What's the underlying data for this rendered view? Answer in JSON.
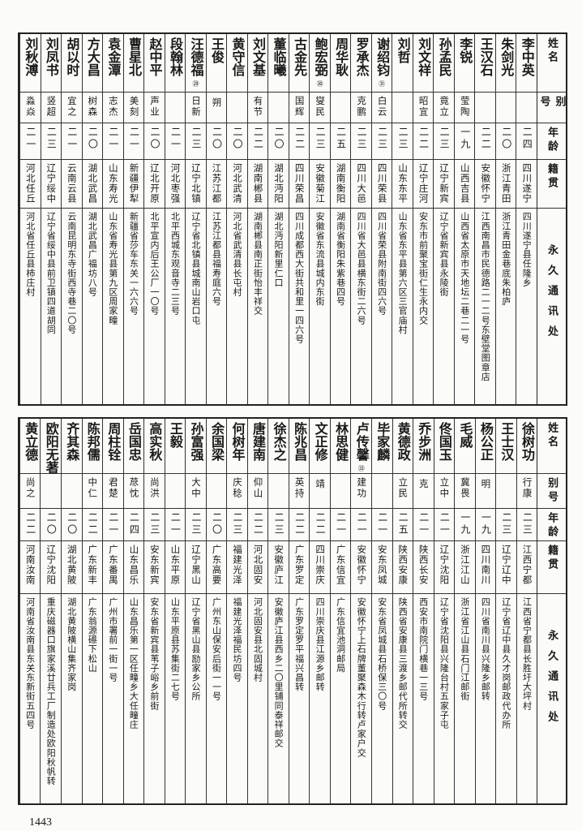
{
  "headers": {
    "name": "姓名",
    "alias": "别号",
    "age": "年龄",
    "hometown": "籍贯",
    "address": "永久通讯处"
  },
  "tables": [
    {
      "rows": [
        {
          "name": "李中英",
          "alias": "",
          "age": "二四",
          "hometown": "四川遂宁",
          "address": "四川遂宁县任隆乡"
        },
        {
          "name": "朱剑光",
          "alias": "",
          "age": "二〇",
          "hometown": "浙江青田",
          "address": "浙江青田金巷底朱柏庐"
        },
        {
          "name": "王汉石",
          "alias": "",
          "age": "二二",
          "hometown": "安徽怀宁",
          "address": "江西南昌市民德路二一二号东壁堂图章店"
        },
        {
          "name": "李锐",
          "alias": "莹陶",
          "age": "一九",
          "hometown": "山西吉县",
          "address": "山西省太原市天地坛二巷二一号"
        },
        {
          "name": "孙孟民",
          "alias": "竟立",
          "age": "二三",
          "hometown": "辽宁新宾",
          "address": "辽宁省新宾县永陵街"
        },
        {
          "name": "刘文祥",
          "alias": "昭宜",
          "age": "二二",
          "hometown": "辽宁庄河",
          "address": "安东市前聚宝街仁生永内交"
        },
        {
          "name": "刘哲",
          "alias": "",
          "age": "二三",
          "hometown": "山东东平",
          "address": "山东省东平县第六区三官庙村"
        },
        {
          "name": "谢绍钧",
          "note": "㉛",
          "alias": "白云",
          "age": "二三",
          "hometown": "四川荣县",
          "address": "四川省荣县附南街四六号"
        },
        {
          "name": "罗承杰",
          "alias": "克鹏",
          "age": "二三",
          "hometown": "四川大邑",
          "address": "四川省大邑县横东街二六号"
        },
        {
          "name": "周华耿",
          "alias": "",
          "age": "二五",
          "hometown": "湖南衡阳",
          "address": "湖南省衡阳朱紫巷四号"
        },
        {
          "name": "鲍宏弼",
          "note": "㉚",
          "alias": "燮民",
          "age": "二三",
          "hometown": "安徽菊江",
          "address": "安徽省东流县城内东街"
        },
        {
          "name": "古金先",
          "alias": "国辉",
          "age": "二二",
          "hometown": "四川荣昌",
          "address": "四川成都西大街共和里一四六号"
        },
        {
          "name": "董临曦",
          "alias": "",
          "age": "二〇",
          "hometown": "湖北沔阳",
          "address": "湖北沔阳新里仁口"
        },
        {
          "name": "刘文基",
          "alias": "有节",
          "age": "二二",
          "hometown": "湖南郴县",
          "address": "湖南郴县南正街怡丰祥交"
        },
        {
          "name": "黄守信",
          "alias": "",
          "age": "二〇",
          "hometown": "河北武清",
          "address": "河北省武清县长屯村"
        },
        {
          "name": "王俊",
          "alias": "朔",
          "age": "二〇",
          "hometown": "江苏江都",
          "address": "江苏江都县福寿庭六号"
        },
        {
          "name": "汪德福",
          "note": "㉙",
          "alias": "日新",
          "age": "二三",
          "hometown": "辽宁北镇",
          "address": "辽宁省北镇县城南山岩口屯"
        },
        {
          "name": "段翰林",
          "alias": "",
          "age": "二一",
          "hometown": "河北枣强",
          "address": "北平西城东观音寺二三号"
        },
        {
          "name": "赵中平",
          "alias": "声业",
          "age": "二〇",
          "hometown": "辽北开原",
          "address": "北平宣内后王公厂一〇号"
        },
        {
          "name": "曹星北",
          "alias": "美刻",
          "age": "二一",
          "hometown": "新疆伊犁",
          "address": "新疆省莎车东关一六六号"
        },
        {
          "name": "袁金潭",
          "alias": "志杰",
          "age": "二一",
          "hometown": "山东寿光",
          "address": "山东省寿光县第九区周家疃"
        },
        {
          "name": "方大昌",
          "alias": "树森",
          "age": "二〇",
          "hometown": "湖北武昌",
          "address": "湖北武昌广福坊八号"
        },
        {
          "name": "胡以时",
          "alias": "宜之",
          "age": "二一",
          "hometown": "云南云县",
          "address": "云南昆明东寺街西寺巷二〇号"
        },
        {
          "name": "刘凤书",
          "alias": "竖超",
          "age": "二三",
          "hometown": "辽宁绥中",
          "address": "辽宁省绥中县前卫镇四道胡同"
        },
        {
          "name": "刘秋溥",
          "alias": "淼焱",
          "age": "二一",
          "hometown": "河北任丘",
          "address": "河北省任丘县柿庄村"
        }
      ]
    },
    {
      "rows": [
        {
          "name": "徐树功",
          "alias": "行康",
          "age": "二三",
          "hometown": "江西宁都",
          "address": "江西省宁都县长胜圩大坪村"
        },
        {
          "name": "王士汉",
          "alias": "",
          "age": "二三",
          "hometown": "辽宁辽中",
          "address": "辽宁省辽中县久才岗邮政代办所"
        },
        {
          "name": "杨公正",
          "alias": "明",
          "age": "一九",
          "hometown": "四川南川",
          "address": "四川省南川县兴隆乡邮转"
        },
        {
          "name": "毛威",
          "alias": "冀畏",
          "age": "一九",
          "hometown": "浙江江山",
          "address": "浙江省江山县石门江邮街"
        },
        {
          "name": "佟国玉",
          "alias": "立中",
          "age": "二一",
          "hometown": "辽宁沈阳",
          "address": "辽宁省沈阳县兴隆台村五家子屯"
        },
        {
          "name": "乔步洲",
          "alias": "克",
          "age": "二一",
          "hometown": "陕西长安",
          "address": "西安市南院门横巷一三号"
        },
        {
          "name": "黄德政",
          "alias": "立民",
          "age": "二五",
          "hometown": "陕西安康",
          "address": "陕西省安康县三渡乡邮代所转交"
        },
        {
          "name": "毕家麟",
          "alias": "",
          "age": "二一",
          "hometown": "安东凤城",
          "address": "安东省凤城县石桥保三〇号"
        },
        {
          "name": "卢传馨",
          "note": "㉝",
          "alias": "建功",
          "age": "二一",
          "hometown": "安徽怀宁",
          "address": "安徽怀宁上石牌董聚森木行转卢家户交"
        },
        {
          "name": "林思健",
          "alias": "",
          "age": "二一",
          "hometown": "广东信宜",
          "address": "广东信宜池洞邮局"
        },
        {
          "name": "文正修",
          "alias": "靖",
          "age": "二二",
          "hometown": "四川崇庆",
          "address": "四川崇庆县江源乡邮转"
        },
        {
          "name": "陈兆昌",
          "alias": "英持",
          "age": "二二",
          "hometown": "广东罗定",
          "address": "广东罗定罗平福兴昌转"
        },
        {
          "name": "徐杰之",
          "alias": "",
          "age": "二三",
          "hometown": "安徽庐江",
          "address": "安徽庐江县西乡二〇里铺同泰祥邮交"
        },
        {
          "name": "唐建南",
          "alias": "仰山",
          "age": "二二",
          "hometown": "河北固安",
          "address": "河北固安县北固城村"
        },
        {
          "name": "何树年",
          "alias": "庆稔",
          "age": "二三",
          "hometown": "福建光泽",
          "address": "福建光泽福民坊四号"
        },
        {
          "name": "余国梁",
          "alias": "",
          "age": "二〇",
          "hometown": "广东高要",
          "address": "广州东山保安后街一一号"
        },
        {
          "name": "孙富强",
          "alias": "大中",
          "age": "二三",
          "hometown": "辽宁黑山",
          "address": "辽宁省黑山县励家乡公所"
        },
        {
          "name": "王毅",
          "alias": "",
          "age": "二一",
          "hometown": "山东平原",
          "address": "山东平原县苏集街二七号"
        },
        {
          "name": "高实秋",
          "alias": "尚洪",
          "age": "二三",
          "hometown": "安东新宾",
          "address": "安东省新宾县苇子峪乡前街"
        },
        {
          "name": "岳国忠",
          "alias": "荩忱",
          "age": "二四",
          "hometown": "山东昌乐",
          "address": "山东昌乐第一区任疃乡大任疃庄"
        },
        {
          "name": "周柱铨",
          "alias": "君楚",
          "age": "二一",
          "hometown": "广东番禺",
          "address": "广州市署前一街一号"
        },
        {
          "name": "陈邦儒",
          "alias": "中仁",
          "age": "二二",
          "hometown": "广东新丰",
          "address": "广东翁源礤下松山"
        },
        {
          "name": "齐其森",
          "alias": "",
          "age": "二〇",
          "hometown": "湖北黄陂",
          "address": "湖北黄陂横山集齐家岗"
        },
        {
          "name": "欧阳无著",
          "alias": "",
          "age": "二〇",
          "hometown": "辽宁沈阳",
          "address": "重庆磁器口旗家溪廿兵工厂制造处欧阳秋帆转"
        },
        {
          "name": "黄立德",
          "alias": "尚之",
          "age": "二二",
          "hometown": "河南汝南",
          "address": "河南省汝南县东关东新街五四号"
        }
      ]
    }
  ],
  "page_number": "1443"
}
